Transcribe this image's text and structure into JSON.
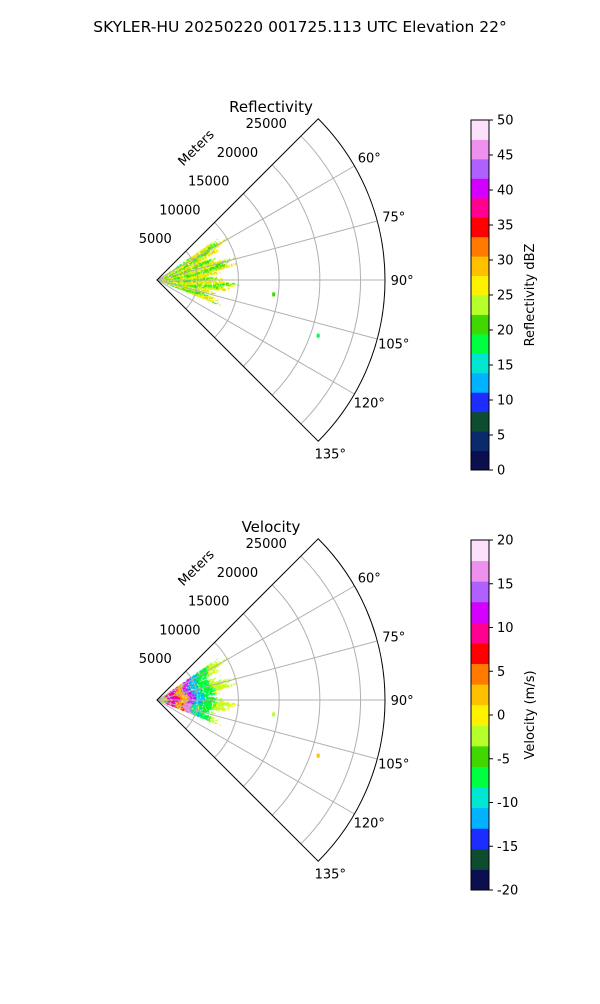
{
  "figure": {
    "suptitle": "SKYLER-HU  20250220  001725.113 UTC Elevation 22°"
  },
  "chart_data": [
    {
      "type": "heatmap",
      "projection": "polar-sector",
      "title": "Reflectivity",
      "radial_label": "Meters",
      "radial_ticks": [
        5000,
        10000,
        15000,
        20000,
        25000
      ],
      "r_max": 28000,
      "theta_range_deg": [
        45,
        135
      ],
      "angle_ticks_deg": [
        60,
        75,
        90,
        105,
        120,
        135
      ],
      "angle_tick_labels": [
        "60°",
        "75°",
        "90°",
        "105°",
        "120°",
        "135°"
      ],
      "grid": true,
      "data_coverage": {
        "theta_start_deg": 55,
        "theta_end_deg": 112,
        "r_max_m": 9000,
        "typical_value_range": [
          15,
          30
        ],
        "stray_echoes": [
          {
            "theta_deg": 109,
            "r_m": 21000,
            "value": 18
          },
          {
            "theta_deg": 97,
            "r_m": 14500,
            "value": 20
          }
        ]
      },
      "colorbar": {
        "label": "Reflectivity dBZ",
        "min": 0,
        "max": 50,
        "ticks": [
          0,
          5,
          10,
          15,
          20,
          25,
          30,
          35,
          40,
          45,
          50
        ],
        "colors": [
          "#0b0e4f",
          "#0a2a6b",
          "#0d4c2e",
          "#1d2dff",
          "#00b2ff",
          "#00e6d0",
          "#00ff40",
          "#40d800",
          "#b6ff2a",
          "#fff200",
          "#ffc000",
          "#ff7b00",
          "#ff0000",
          "#ff0090",
          "#d400ff",
          "#b060ff",
          "#ee90ee",
          "#fde0fb"
        ]
      }
    },
    {
      "type": "heatmap",
      "projection": "polar-sector",
      "title": "Velocity",
      "radial_label": "Meters",
      "radial_ticks": [
        5000,
        10000,
        15000,
        20000,
        25000
      ],
      "r_max": 28000,
      "theta_range_deg": [
        45,
        135
      ],
      "angle_ticks_deg": [
        60,
        75,
        90,
        105,
        120,
        135
      ],
      "angle_tick_labels": [
        "60°",
        "75°",
        "90°",
        "105°",
        "120°",
        "135°"
      ],
      "grid": true,
      "data_coverage": {
        "theta_start_deg": 55,
        "theta_end_deg": 112,
        "r_max_m": 9000,
        "range_bands_m_per_s": [
          {
            "r_from_m": 0,
            "r_to_m": 1200,
            "value": -2
          },
          {
            "r_from_m": 1200,
            "r_to_m": 2500,
            "value": 10
          },
          {
            "r_from_m": 2500,
            "r_to_m": 3500,
            "value": 3
          },
          {
            "r_from_m": 3500,
            "r_to_m": 4500,
            "value": 13
          },
          {
            "r_from_m": 4500,
            "r_to_m": 5500,
            "value": -11
          },
          {
            "r_from_m": 5500,
            "r_to_m": 7000,
            "value": -7
          },
          {
            "r_from_m": 7000,
            "r_to_m": 9000,
            "value": -2
          }
        ],
        "stray_echoes": [
          {
            "theta_deg": 109,
            "r_m": 21000,
            "value": 2
          },
          {
            "theta_deg": 97,
            "r_m": 14500,
            "value": -3
          }
        ]
      },
      "colorbar": {
        "label": "Velocity (m/s)",
        "min": -20,
        "max": 20,
        "ticks": [
          -20,
          -15,
          -10,
          -5,
          0,
          5,
          10,
          15,
          20
        ],
        "colors": [
          "#0b0e4f",
          "#0d4c2e",
          "#1d2dff",
          "#00b2ff",
          "#00e6d0",
          "#00ff40",
          "#40d800",
          "#b6ff2a",
          "#fff200",
          "#ffc000",
          "#ff7b00",
          "#ff0000",
          "#ff0090",
          "#d400ff",
          "#b060ff",
          "#ee90ee",
          "#fde0fb"
        ]
      }
    }
  ]
}
